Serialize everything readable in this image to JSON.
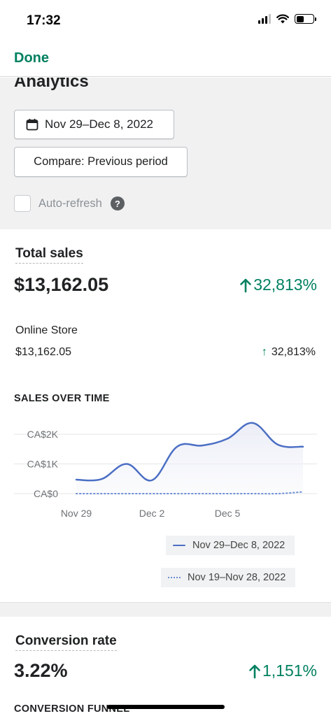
{
  "status_bar": {
    "time": "17:32",
    "battery_level": 0.45
  },
  "nav": {
    "done_label": "Done"
  },
  "analytics": {
    "title": "Analytics",
    "date_range_label": "Nov 29–Dec 8, 2022",
    "compare_label": "Compare: Previous period",
    "auto_refresh_label": "Auto-refresh",
    "help_glyph": "?"
  },
  "total_sales": {
    "title": "Total sales",
    "value": "$13,162.05",
    "growth": "32,813%",
    "channel": {
      "name": "Online Store",
      "value": "$13,162.05",
      "growth": "32,813%"
    }
  },
  "sales_over_time": {
    "title": "SALES OVER TIME"
  },
  "chart_data": {
    "type": "line",
    "title": "SALES OVER TIME",
    "x": [
      "Nov 29",
      "Nov 30",
      "Dec 1",
      "Dec 2",
      "Dec 3",
      "Dec 4",
      "Dec 5",
      "Dec 6",
      "Dec 7",
      "Dec 8"
    ],
    "x_tick_labels": [
      "Nov 29",
      "Dec 2",
      "Dec 5"
    ],
    "y_tick_labels": [
      "CA$2K",
      "CA$1K",
      "CA$0"
    ],
    "ylim": [
      0,
      2400
    ],
    "series": [
      {
        "name": "Nov 29–Dec 8, 2022",
        "style": "solid",
        "color": "#4b6fc4",
        "values": [
          470,
          490,
          1000,
          450,
          1580,
          1620,
          1850,
          2380,
          1650,
          1580
        ]
      },
      {
        "name": "Nov 19–Nov 28, 2022",
        "style": "dotted",
        "color": "#6d8fd4",
        "values": [
          0,
          0,
          0,
          0,
          0,
          0,
          0,
          0,
          0,
          60
        ]
      }
    ],
    "grid": true,
    "legend_position": "bottom-right"
  },
  "conversion_rate": {
    "title": "Conversion rate",
    "value": "3.22%",
    "growth": "1,151%",
    "funnel_title": "CONVERSION FUNNEL"
  },
  "colors": {
    "accent": "#008060",
    "chart_line": "#4b6fc4"
  }
}
